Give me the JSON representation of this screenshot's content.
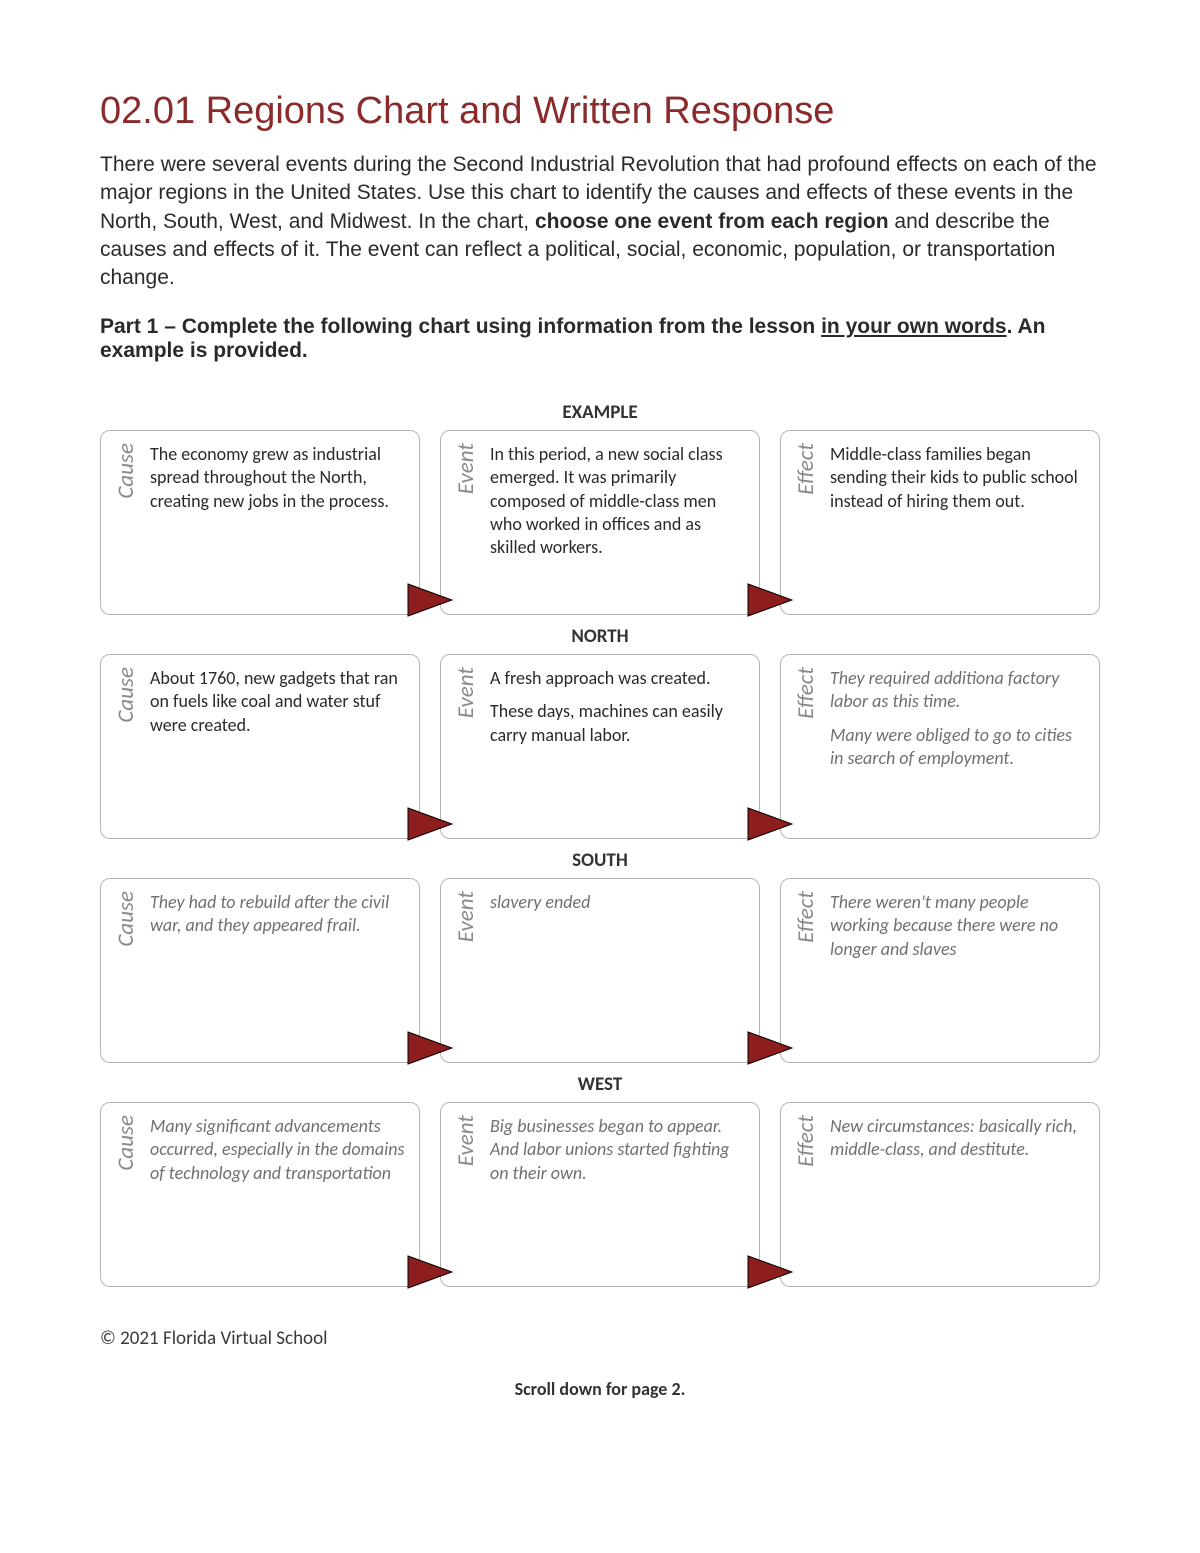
{
  "title": "02.01 Regions Chart and Written Response",
  "intro_html": "There were several events during the Second Industrial Revolution that had profound effects on each of the major regions in the United States. Use this chart to identify the causes and effects of these events in the North, South, West, and Midwest. In the chart, <b>choose one event from each region</b> and describe the causes and effects of it. The event can reflect a political, social, economic, population, or transportation change.",
  "part_heading_html": "Part 1 – Complete the following chart using information from the lesson <u>in your own words</u>. An example is provided.",
  "labels": {
    "cause": "Cause",
    "event": "Event",
    "effect": "Effect"
  },
  "arrow": {
    "fill": "#8e1d1d",
    "stroke": "#000000",
    "width": 46,
    "height": 34
  },
  "sections": [
    {
      "key": "example",
      "heading": "EXAMPLE",
      "cause": {
        "italic": false,
        "paras": [
          "The economy grew as industrial spread throughout the North, creating new jobs in the process."
        ]
      },
      "event": {
        "italic": false,
        "paras": [
          "In this period, a new social class emerged. It was primarily composed of middle-class men who worked in offices and as skilled workers."
        ]
      },
      "effect": {
        "italic": false,
        "paras": [
          "Middle-class families began sending their kids to public school instead of hiring them out."
        ]
      }
    },
    {
      "key": "north",
      "heading": "NORTH",
      "cause": {
        "italic": false,
        "paras": [
          "About 1760, new gadgets that ran on fuels like coal and water stuf were created."
        ]
      },
      "event": {
        "italic": false,
        "paras": [
          "A fresh approach was created.",
          "These days, machines can easily carry manual labor."
        ]
      },
      "effect": {
        "italic": true,
        "paras": [
          "They required additiona factory labor as this time.",
          "Many were obliged to go to cities in search of employment."
        ]
      }
    },
    {
      "key": "south",
      "heading": "SOUTH",
      "cause": {
        "italic": true,
        "paras": [
          "They had to rebuild after the civil war, and they appeared frail."
        ]
      },
      "event": {
        "italic": true,
        "paras": [
          "slavery ended"
        ]
      },
      "effect": {
        "italic": true,
        "paras": [
          "There weren't many people working because there were no longer and slaves"
        ]
      }
    },
    {
      "key": "west",
      "heading": "WEST",
      "cause": {
        "italic": true,
        "paras": [
          "Many significant advancements occurred, especially in the domains of technology and transportation"
        ]
      },
      "event": {
        "italic": true,
        "paras": [
          "Big businesses began to appear. And labor unions started fighting on their own."
        ]
      },
      "effect": {
        "italic": true,
        "paras": [
          "New circumstances: basically rich, middle-class, and destitute."
        ]
      }
    }
  ],
  "footer": "© 2021 Florida Virtual School",
  "scroll_note": "Scroll down for page 2."
}
